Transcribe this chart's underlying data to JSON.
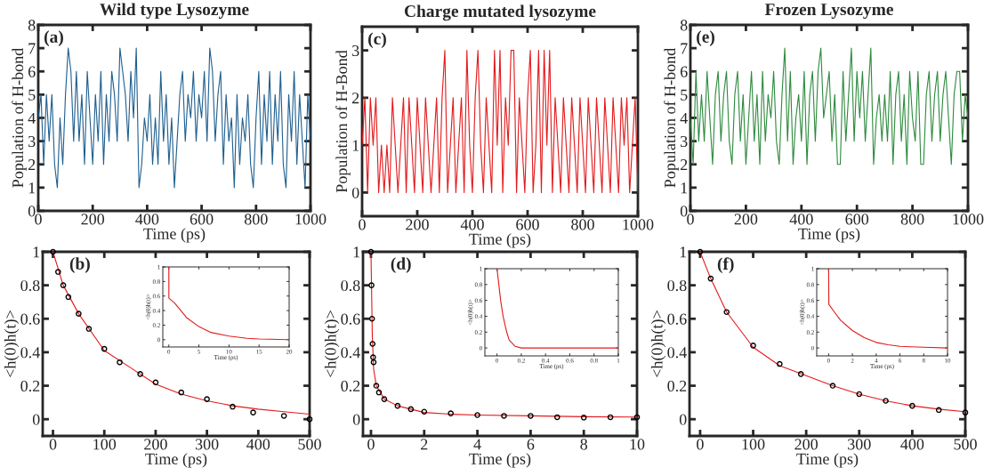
{
  "chart_data": [
    {
      "type": "line",
      "title": "Wild type Lysozyme",
      "xlabel": "Time (ps)",
      "ylabel": "Population of H-bond",
      "annotations": [
        "(a)"
      ],
      "xlim": [
        0,
        1000
      ],
      "ylim": [
        0,
        8
      ],
      "xticks": [
        0,
        200,
        400,
        600,
        800,
        1000
      ],
      "yticks": [
        0,
        1,
        2,
        3,
        4,
        5,
        6,
        7,
        8
      ],
      "x": [
        0,
        10,
        20,
        30,
        40,
        50,
        60,
        70,
        80,
        90,
        100,
        110,
        120,
        130,
        140,
        150,
        160,
        170,
        180,
        190,
        200,
        210,
        220,
        230,
        240,
        250,
        260,
        270,
        280,
        290,
        300,
        310,
        320,
        330,
        340,
        350,
        360,
        370,
        380,
        390,
        400,
        410,
        420,
        430,
        440,
        450,
        460,
        470,
        480,
        490,
        500,
        510,
        520,
        530,
        540,
        550,
        560,
        570,
        580,
        590,
        600,
        610,
        620,
        630,
        640,
        650,
        660,
        670,
        680,
        690,
        700,
        710,
        720,
        730,
        740,
        750,
        760,
        770,
        780,
        790,
        800,
        810,
        820,
        830,
        840,
        850,
        860,
        870,
        880,
        890,
        900,
        910,
        920,
        930,
        940,
        950,
        960,
        970,
        980,
        990,
        1000
      ],
      "series": [
        {
          "color": "#1f5f8f",
          "values": [
            4,
            5,
            2,
            5,
            3,
            5,
            2,
            1,
            4,
            2,
            5,
            7,
            6,
            3,
            6,
            3,
            5,
            2,
            6,
            4,
            2,
            5,
            3,
            6,
            2,
            5,
            3,
            6,
            5,
            3,
            7,
            6,
            5,
            3,
            6,
            4,
            7,
            1,
            2,
            4,
            3,
            5,
            2,
            4,
            2,
            6,
            3,
            5,
            2,
            4,
            1,
            3,
            5,
            6,
            3,
            5,
            4,
            6,
            3,
            5,
            4,
            6,
            3,
            7,
            6,
            3,
            5,
            6,
            2,
            5,
            3,
            4,
            1,
            5,
            2,
            4,
            3,
            5,
            2,
            1,
            4,
            6,
            2,
            5,
            3,
            6,
            2,
            5,
            3,
            6,
            2,
            1,
            5,
            3,
            6,
            2,
            5,
            3,
            1,
            5,
            3
          ]
        }
      ]
    },
    {
      "type": "line",
      "title": "Charge mutated lysozyme",
      "xlabel": "Time (ps)",
      "ylabel": "Population of H-Bond",
      "annotations": [
        "(c)"
      ],
      "xlim": [
        0,
        1000
      ],
      "ylim": [
        -0.5,
        3.5
      ],
      "xticks": [
        0,
        200,
        400,
        600,
        800,
        1000
      ],
      "yticks": [
        0,
        1,
        2,
        3
      ],
      "x": [
        0,
        10,
        20,
        30,
        40,
        50,
        60,
        70,
        80,
        90,
        100,
        110,
        120,
        130,
        140,
        150,
        160,
        170,
        180,
        190,
        200,
        210,
        220,
        230,
        240,
        250,
        260,
        270,
        280,
        290,
        300,
        310,
        320,
        330,
        340,
        350,
        360,
        370,
        380,
        390,
        400,
        410,
        420,
        430,
        440,
        450,
        460,
        470,
        480,
        490,
        500,
        510,
        520,
        530,
        540,
        550,
        560,
        570,
        580,
        590,
        600,
        610,
        620,
        630,
        640,
        650,
        660,
        670,
        680,
        690,
        700,
        710,
        720,
        730,
        740,
        750,
        760,
        770,
        780,
        790,
        800,
        810,
        820,
        830,
        840,
        850,
        860,
        870,
        880,
        890,
        900,
        910,
        920,
        930,
        940,
        950,
        960,
        970,
        980,
        990,
        1000
      ],
      "series": [
        {
          "color": "#e31a1c",
          "values": [
            1,
            2,
            0,
            2,
            1,
            2,
            0,
            1,
            0,
            1,
            0,
            2,
            1,
            0,
            1,
            2,
            0,
            2,
            1,
            0,
            2,
            1,
            0,
            2,
            1,
            0,
            1,
            2,
            0,
            2,
            3,
            0,
            1,
            2,
            0,
            1,
            2,
            0,
            3,
            1,
            0,
            2,
            3,
            1,
            0,
            2,
            1,
            0,
            3,
            1,
            3,
            0,
            2,
            1,
            3,
            3,
            0,
            2,
            1,
            0,
            2,
            3,
            0,
            1,
            3,
            0,
            3,
            1,
            3,
            0,
            2,
            1,
            0,
            2,
            1,
            0,
            2,
            1,
            0,
            2,
            1,
            0,
            2,
            1,
            0,
            2,
            1,
            0,
            2,
            1,
            0,
            2,
            1,
            0,
            2,
            1,
            2,
            0,
            1,
            2,
            0
          ]
        }
      ]
    },
    {
      "type": "line",
      "title": "Frozen Lysozyme",
      "xlabel": "Time (ps)",
      "ylabel": "Population of H-bond",
      "annotations": [
        "(e)"
      ],
      "xlim": [
        0,
        1000
      ],
      "ylim": [
        0,
        8
      ],
      "xticks": [
        0,
        200,
        400,
        600,
        800,
        1000
      ],
      "yticks": [
        0,
        1,
        2,
        3,
        4,
        5,
        6,
        7,
        8
      ],
      "x": [
        0,
        10,
        20,
        30,
        40,
        50,
        60,
        70,
        80,
        90,
        100,
        110,
        120,
        130,
        140,
        150,
        160,
        170,
        180,
        190,
        200,
        210,
        220,
        230,
        240,
        250,
        260,
        270,
        280,
        290,
        300,
        310,
        320,
        330,
        340,
        350,
        360,
        370,
        380,
        390,
        400,
        410,
        420,
        430,
        440,
        450,
        460,
        470,
        480,
        490,
        500,
        510,
        520,
        530,
        540,
        550,
        560,
        570,
        580,
        590,
        600,
        610,
        620,
        630,
        640,
        650,
        660,
        670,
        680,
        690,
        700,
        710,
        720,
        730,
        740,
        750,
        760,
        770,
        780,
        790,
        800,
        810,
        820,
        830,
        840,
        850,
        860,
        870,
        880,
        890,
        900,
        910,
        920,
        930,
        940,
        950,
        960,
        970,
        980,
        990,
        1000
      ],
      "series": [
        {
          "color": "#2e8b3e",
          "values": [
            4,
            2,
            6,
            3,
            5,
            3,
            6,
            4,
            2,
            5,
            6,
            3,
            5,
            6,
            3,
            2,
            5,
            6,
            3,
            5,
            2,
            4,
            6,
            3,
            5,
            2,
            6,
            3,
            5,
            4,
            6,
            3,
            2,
            5,
            7,
            3,
            6,
            2,
            4,
            5,
            3,
            6,
            2,
            5,
            6,
            3,
            6,
            7,
            4,
            5,
            6,
            3,
            5,
            2,
            2,
            6,
            3,
            5,
            7,
            3,
            6,
            4,
            6,
            3,
            5,
            7,
            2,
            4,
            5,
            3,
            5,
            3,
            6,
            2,
            5,
            6,
            3,
            5,
            2,
            6,
            4,
            3,
            6,
            2,
            2,
            5,
            6,
            3,
            5,
            6,
            3,
            5,
            6,
            4,
            2,
            5,
            6,
            6,
            3,
            5,
            4
          ]
        }
      ]
    },
    {
      "type": "line",
      "xlabel": "Time (ps)",
      "ylabel": "<h(0)h(t)>",
      "annotations": [
        "(b)"
      ],
      "xlim": [
        -20,
        500
      ],
      "ylim": [
        -0.1,
        1
      ],
      "xticks": [
        0,
        100,
        200,
        300,
        400,
        500
      ],
      "yticks": [
        0,
        0.2,
        0.4,
        0.6,
        0.8,
        1
      ],
      "series": [
        {
          "type": "scatter",
          "marker": "circle",
          "color": "#000000",
          "x": [
            0,
            10,
            20,
            30,
            50,
            70,
            100,
            130,
            170,
            200,
            250,
            300,
            350,
            390,
            450,
            500
          ],
          "values": [
            1,
            0.88,
            0.8,
            0.73,
            0.63,
            0.54,
            0.42,
            0.34,
            0.27,
            0.22,
            0.16,
            0.12,
            0.075,
            0.04,
            0.02,
            0.0
          ]
        },
        {
          "type": "line",
          "color": "#e31a1c",
          "x": [
            0,
            20,
            50,
            100,
            150,
            200,
            250,
            300,
            350,
            400,
            450,
            500
          ],
          "values": [
            1,
            0.8,
            0.63,
            0.41,
            0.31,
            0.21,
            0.15,
            0.11,
            0.08,
            0.06,
            0.045,
            0.03
          ]
        }
      ]
    },
    {
      "type": "line",
      "xlabel": "Time (ps)",
      "ylabel": "<h(0)h(t)>",
      "xlim": [
        -1,
        20
      ],
      "ylim": [
        -0.1,
        1
      ],
      "xticks": [
        0,
        5,
        10,
        15,
        20
      ],
      "yticks": [
        0,
        0.2,
        0.4,
        0.6,
        0.8,
        1
      ],
      "series": [
        {
          "color": "#e31a1c",
          "x": [
            0,
            0.01,
            1,
            2,
            3,
            5,
            7,
            10,
            13,
            15,
            20
          ],
          "values": [
            1,
            0.57,
            0.5,
            0.4,
            0.3,
            0.18,
            0.1,
            0.05,
            0.02,
            0.01,
            0.0
          ]
        }
      ]
    },
    {
      "type": "line",
      "xlabel": "Time (ps)",
      "ylabel": "<h(0)h(t)>",
      "annotations": [
        "(d)"
      ],
      "xlim": [
        -0.3,
        10
      ],
      "ylim": [
        -0.1,
        1
      ],
      "xticks": [
        0,
        2,
        4,
        6,
        8,
        10
      ],
      "yticks": [
        0,
        0.2,
        0.4,
        0.6,
        0.8,
        1
      ],
      "series": [
        {
          "type": "scatter",
          "marker": "circle",
          "color": "#000000",
          "x": [
            0,
            0.02,
            0.04,
            0.06,
            0.08,
            0.1,
            0.2,
            0.3,
            0.5,
            1,
            1.5,
            2,
            3,
            4,
            5,
            6,
            7,
            8,
            9,
            10
          ],
          "values": [
            1,
            0.8,
            0.6,
            0.45,
            0.37,
            0.34,
            0.2,
            0.16,
            0.12,
            0.08,
            0.06,
            0.045,
            0.035,
            0.025,
            0.02,
            0.02,
            0.012,
            0.01,
            0.012,
            0.012
          ]
        },
        {
          "type": "line",
          "color": "#e31a1c",
          "x": [
            0,
            0.05,
            0.1,
            0.2,
            0.5,
            1,
            2,
            3,
            4,
            6,
            8,
            10
          ],
          "values": [
            1,
            0.5,
            0.3,
            0.2,
            0.12,
            0.08,
            0.04,
            0.03,
            0.025,
            0.02,
            0.015,
            0.013
          ]
        }
      ]
    },
    {
      "type": "line",
      "xlabel": "Time (ps)",
      "ylabel": "<h(0)h(t)>",
      "xlim": [
        -0.1,
        1
      ],
      "ylim": [
        -0.1,
        1
      ],
      "xticks": [
        0,
        0.2,
        0.4,
        0.6,
        0.8,
        1
      ],
      "yticks": [
        0,
        0.2,
        0.4,
        0.6,
        0.8,
        1
      ],
      "series": [
        {
          "color": "#e31a1c",
          "x": [
            0,
            0.03,
            0.05,
            0.08,
            0.1,
            0.15,
            0.2,
            1
          ],
          "values": [
            1,
            0.6,
            0.4,
            0.2,
            0.1,
            0.02,
            0.0,
            0.0
          ]
        }
      ]
    },
    {
      "type": "line",
      "xlabel": "Time (ps)",
      "ylabel": "<h(0)h(t)>",
      "annotations": [
        "(f)"
      ],
      "xlim": [
        -20,
        500
      ],
      "ylim": [
        -0.1,
        1
      ],
      "xticks": [
        0,
        100,
        200,
        300,
        400,
        500
      ],
      "yticks": [
        0,
        0.2,
        0.4,
        0.6,
        0.8,
        1
      ],
      "series": [
        {
          "type": "scatter",
          "marker": "circle",
          "color": "#000000",
          "x": [
            0,
            20,
            50,
            100,
            150,
            190,
            250,
            300,
            350,
            400,
            450,
            500
          ],
          "values": [
            1,
            0.84,
            0.64,
            0.44,
            0.33,
            0.27,
            0.2,
            0.15,
            0.11,
            0.08,
            0.055,
            0.04
          ]
        },
        {
          "type": "line",
          "color": "#e31a1c",
          "x": [
            0,
            20,
            50,
            100,
            150,
            200,
            250,
            300,
            350,
            400,
            450,
            500
          ],
          "values": [
            1,
            0.84,
            0.64,
            0.43,
            0.32,
            0.26,
            0.2,
            0.15,
            0.11,
            0.08,
            0.06,
            0.045
          ]
        }
      ]
    },
    {
      "type": "line",
      "xlabel": "Time (ps)",
      "ylabel": "<h(0)h(t)>",
      "xlim": [
        -1,
        10
      ],
      "ylim": [
        -0.1,
        1
      ],
      "xticks": [
        0,
        2,
        4,
        6,
        8,
        10
      ],
      "yticks": [
        0,
        0.2,
        0.4,
        0.6,
        0.8,
        1
      ],
      "series": [
        {
          "color": "#e31a1c",
          "x": [
            0,
            0.02,
            0.5,
            1,
            2,
            3,
            4,
            5,
            6,
            8,
            10
          ],
          "values": [
            1,
            0.55,
            0.45,
            0.35,
            0.22,
            0.13,
            0.07,
            0.04,
            0.02,
            0.01,
            0.0
          ]
        }
      ]
    }
  ]
}
